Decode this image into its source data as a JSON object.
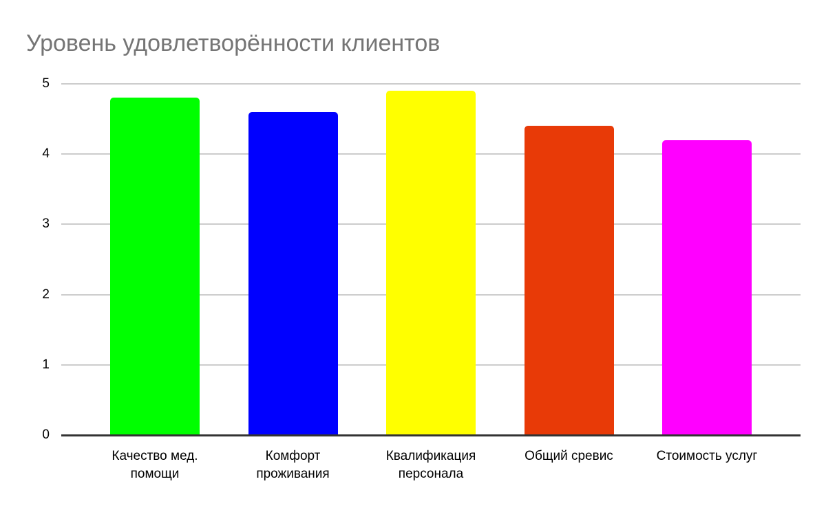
{
  "chart_data": {
    "type": "bar",
    "title": "Уровень удовлетворённости клиентов",
    "categories": [
      "Качество мед. помощи",
      "Комфорт проживания",
      "Квалификация персонала",
      "Общий сревис",
      "Стоимость услуг"
    ],
    "category_lines": [
      [
        "Качество мед.",
        "помощи"
      ],
      [
        "Комфорт",
        "проживания"
      ],
      [
        "Квалификация",
        "персонала"
      ],
      [
        "Общий сревис"
      ],
      [
        "Стоимость услуг"
      ]
    ],
    "values": [
      4.8,
      4.6,
      4.9,
      4.4,
      4.2
    ],
    "bar_colors": [
      "#00ff00",
      "#0000ff",
      "#ffff00",
      "#e83a07",
      "#ff00ff"
    ],
    "yticks": [
      0,
      1,
      2,
      3,
      4,
      5
    ],
    "ylim": [
      0,
      5
    ],
    "xlabel": "",
    "ylabel": "",
    "grid": true,
    "legend": "none",
    "title_color": "#757575",
    "gridline_color": "#cccccc",
    "baseline_color": "#333333",
    "text_color": "#000000",
    "background_color": "#ffffff"
  }
}
